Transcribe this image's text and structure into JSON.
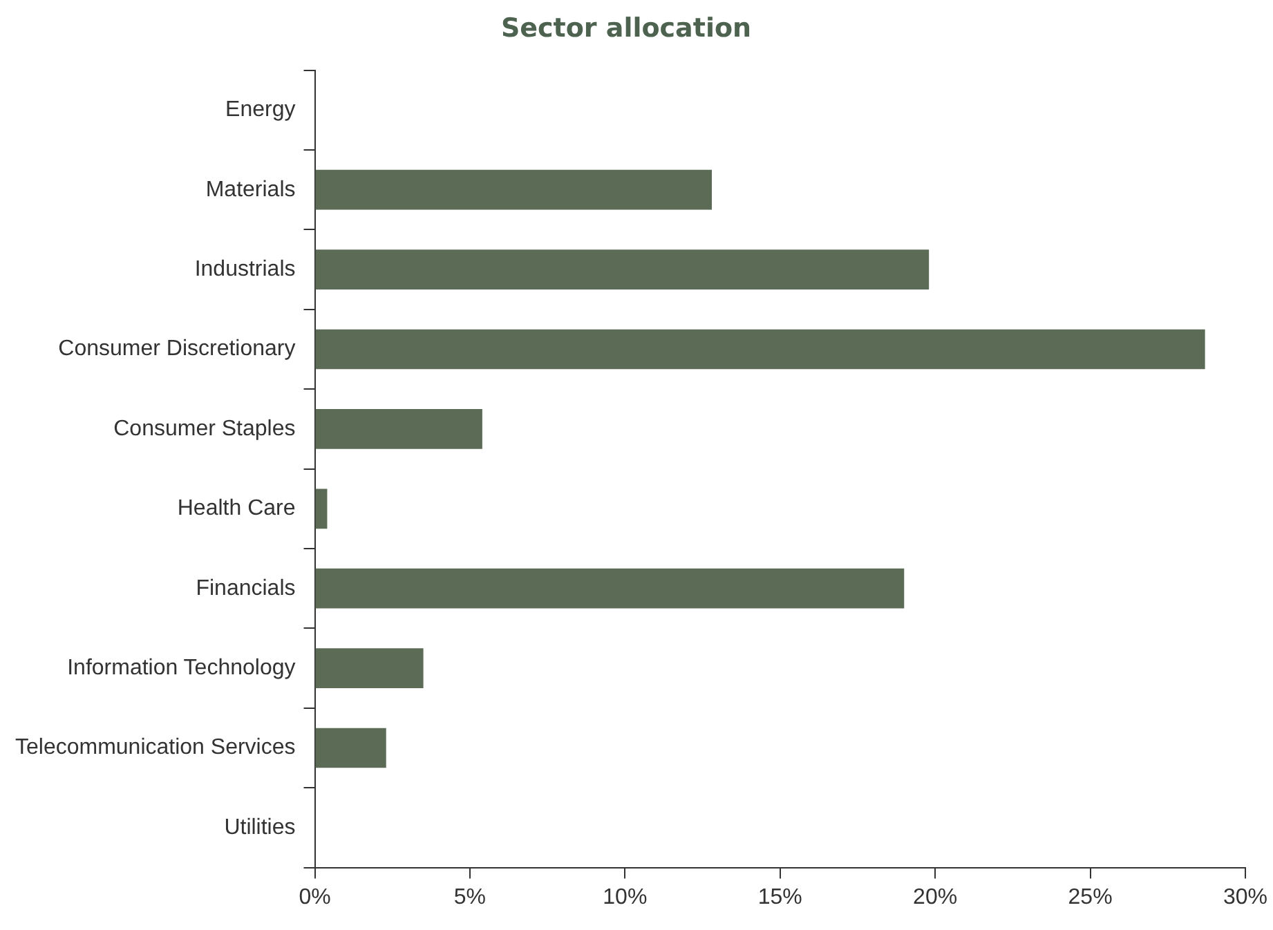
{
  "chart_data": {
    "type": "bar",
    "orientation": "horizontal",
    "title": "Sector allocation",
    "categories": [
      "Energy",
      "Materials",
      "Industrials",
      "Consumer Discretionary",
      "Consumer Staples",
      "Health Care",
      "Financials",
      "Information Technology",
      "Telecommunication Services",
      "Utilities"
    ],
    "values": [
      0,
      12.8,
      19.8,
      28.7,
      5.4,
      0.4,
      19.0,
      3.5,
      2.3,
      0
    ],
    "color": "#5b6b55",
    "xlim": [
      0,
      30
    ],
    "xticks": [
      {
        "value": 0,
        "label": "0%"
      },
      {
        "value": 5,
        "label": "5%"
      },
      {
        "value": 10,
        "label": "10%"
      },
      {
        "value": 15,
        "label": "15%"
      },
      {
        "value": 20,
        "label": "20%"
      },
      {
        "value": 25,
        "label": "25%"
      },
      {
        "value": 30,
        "label": "30%"
      }
    ],
    "grid": false,
    "legend": false
  }
}
